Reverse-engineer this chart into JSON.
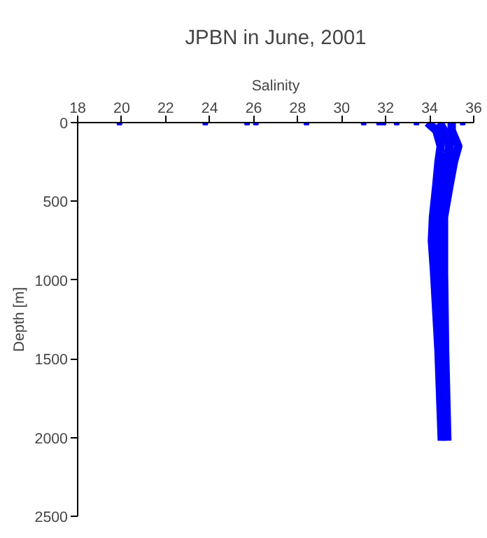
{
  "chart_data": {
    "type": "line",
    "title": "JPBN in June, 2001",
    "xlabel": "Salinity",
    "ylabel": "Depth [m]",
    "xlim": [
      18,
      36
    ],
    "xticks": [
      18,
      20,
      22,
      24,
      26,
      28,
      30,
      32,
      34,
      36
    ],
    "ylim": [
      2500,
      0
    ],
    "yticks": [
      0,
      500,
      1000,
      1500,
      2000,
      2500
    ],
    "grid": false,
    "line_style": "solid",
    "series": [
      {
        "color": "#0000ff",
        "x": [
          33.9,
          34.3,
          34.5,
          34.4,
          34.3,
          34.15,
          34.1,
          34.2,
          34.4,
          34.55
        ],
        "values": [
          0,
          50,
          150,
          250,
          400,
          600,
          750,
          950,
          1450,
          2020
        ]
      },
      {
        "color": "#0000ff",
        "x": [
          34.45,
          34.65,
          34.9,
          34.75,
          34.6,
          34.4,
          34.4,
          34.45,
          34.55,
          34.7
        ],
        "values": [
          0,
          50,
          150,
          250,
          400,
          600,
          750,
          950,
          1450,
          2020
        ]
      },
      {
        "color": "#0000ff",
        "x": [
          35.0,
          35.0,
          35.3,
          35.1,
          34.9,
          34.65,
          34.65,
          34.65,
          34.7,
          34.8
        ],
        "values": [
          0,
          50,
          150,
          250,
          400,
          600,
          750,
          950,
          1450,
          2020
        ]
      },
      {
        "type": "scatter",
        "marker": "square",
        "color": "#0000ff",
        "x": [
          19.9,
          23.8,
          25.7,
          26.1,
          28.4,
          31.0,
          31.7,
          31.9,
          32.5,
          33.4,
          35.5
        ],
        "values": [
          0,
          0,
          0,
          0,
          0,
          0,
          0,
          0,
          0,
          0,
          0
        ]
      }
    ]
  }
}
